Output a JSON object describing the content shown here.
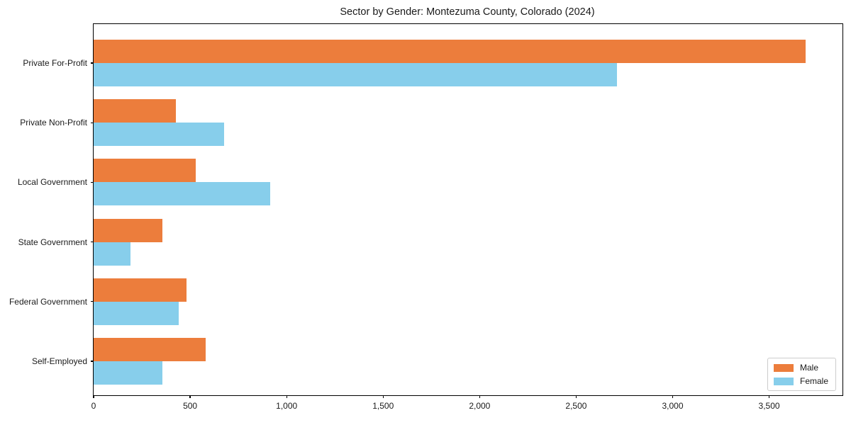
{
  "figure": {
    "title": "Sector by Gender: Montezuma County, Colorado (2024)"
  },
  "chart_data": {
    "type": "bar",
    "orientation": "horizontal",
    "title": "Sector by Gender: Montezuma County, Colorado (2024)",
    "xlabel": "",
    "ylabel": "",
    "categories": [
      "Private For-Profit",
      "Private Non-Profit",
      "Local Government",
      "State Government",
      "Federal Government",
      "Self-Employed"
    ],
    "series": [
      {
        "name": "Male",
        "color": "#ec7d3c",
        "values": [
          3690,
          425,
          530,
          355,
          480,
          580
        ]
      },
      {
        "name": "Female",
        "color": "#87ceeb",
        "values": [
          2710,
          675,
          915,
          190,
          440,
          355
        ]
      }
    ],
    "xlim": [
      0,
      3880
    ],
    "xticks": [
      0,
      500,
      1000,
      1500,
      2000,
      2500,
      3000,
      3500
    ],
    "xtick_labels": [
      "0",
      "500",
      "1,000",
      "1,500",
      "2,000",
      "2,500",
      "3,000",
      "3,500"
    ],
    "grid": false,
    "plot_background": "#ffffff",
    "spine_color": "#000000",
    "legend": {
      "position": "lower right",
      "entries": [
        "Male",
        "Female"
      ]
    }
  }
}
